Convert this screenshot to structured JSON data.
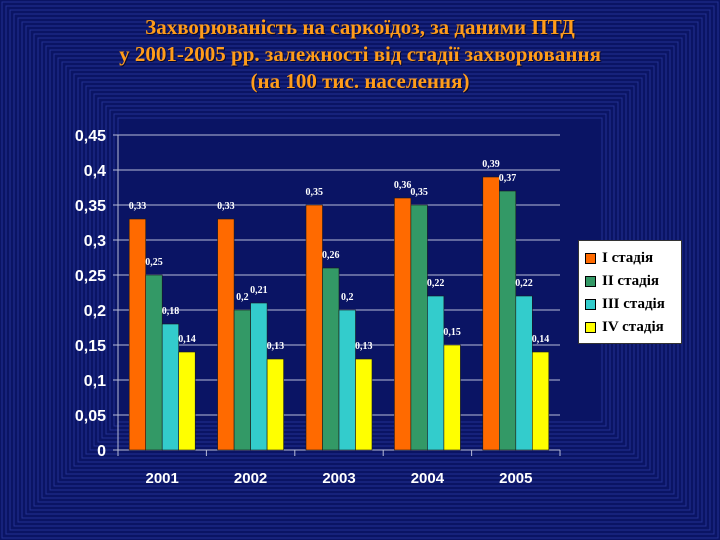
{
  "title_lines": [
    "Захворюваність  на саркоїдоз, за даними   ПТД",
    "у 2001-2005 рр.  залежності від стадії захворювання",
    "(на 100 тис. населення)"
  ],
  "colors": {
    "background": "#0a1464",
    "title": "#ff9c1a",
    "frame_line": "#3848b8"
  },
  "chart_data": {
    "type": "bar",
    "title": "Захворюваність  на саркоїдоз, за даними   ПТД у 2001-2005 рр.  залежності від стадії захворювання (на 100 тис. населення)",
    "categories": [
      "2001",
      "2002",
      "2003",
      "2004",
      "2005"
    ],
    "series": [
      {
        "name": "I стадія",
        "color": "#ff6a00",
        "values": [
          0.33,
          0.33,
          0.35,
          0.36,
          0.39
        ],
        "labels": [
          "0,33",
          "0,33",
          "0,35",
          "0,36",
          "0,39"
        ]
      },
      {
        "name": "II стадія",
        "color": "#339966",
        "values": [
          0.25,
          0.2,
          0.26,
          0.35,
          0.37
        ],
        "labels": [
          "0,25",
          "0,2",
          "0,26",
          "0,35",
          "0,37"
        ]
      },
      {
        "name": "III стадія",
        "color": "#33cccc",
        "values": [
          0.18,
          0.21,
          0.2,
          0.22,
          0.22
        ],
        "labels": [
          "0,18",
          "0,21",
          "0,2",
          "0,22",
          "0,22"
        ]
      },
      {
        "name": "IV стадія",
        "color": "#ffff00",
        "values": [
          0.14,
          0.13,
          0.13,
          0.15,
          0.14
        ],
        "labels": [
          "0,14",
          "0,13",
          "0,13",
          "0,15",
          "0,14"
        ]
      }
    ],
    "ylim": [
      0,
      0.45
    ],
    "yticks": [
      0,
      0.05,
      0.1,
      0.15,
      0.2,
      0.25,
      0.3,
      0.35,
      0.4,
      0.45
    ],
    "ytick_labels": [
      "0",
      "0,05",
      "0,1",
      "0,15",
      "0,2",
      "0,25",
      "0,3",
      "0,35",
      "0,4",
      "0,45"
    ],
    "xlabel": "",
    "ylabel": "",
    "grid": true,
    "legend": "right"
  }
}
